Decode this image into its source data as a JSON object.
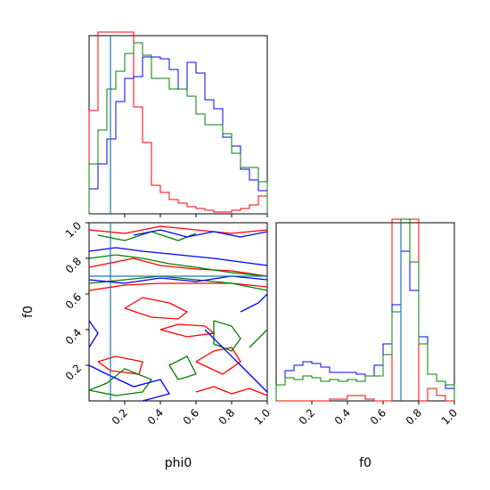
{
  "chart_data": {
    "type": "corner",
    "variables": [
      "phi0",
      "f0"
    ],
    "xlabel_phi0": "phi0",
    "xlabel_f0": "f0",
    "ylabel_f0": "f0",
    "xlim": [
      0,
      1
    ],
    "ylim": [
      0,
      1
    ],
    "truth": {
      "phi0": 0.12,
      "f0": 0.7
    },
    "ticks": {
      "phi0_bottom": [
        "0.2",
        "0.4",
        "0.6",
        "0.8",
        "1.0"
      ],
      "f0_left": [
        "0.2",
        "0.4",
        "0.6",
        "0.8",
        "1.0"
      ],
      "f0_bottom": [
        "0.2",
        "0.4",
        "0.6",
        "0.8",
        "1.0"
      ]
    },
    "colors": {
      "red": "#ff0000",
      "green": "#008000",
      "blue": "#0000ff",
      "truth": "#1f77b4"
    },
    "histograms": {
      "phi0": {
        "bin_width": 0.05,
        "ymax": 1.0,
        "red": [
          0.58,
          1.2,
          1.2,
          1.2,
          1.2,
          0.6,
          0.4,
          0.16,
          0.12,
          0.08,
          0.06,
          0.04,
          0.03,
          0.02,
          0.01,
          0.01,
          0.02,
          0.03,
          0.05,
          0.1
        ],
        "green": [
          0.28,
          0.47,
          0.7,
          0.8,
          0.9,
          0.96,
          0.89,
          0.76,
          0.76,
          0.7,
          0.7,
          0.66,
          0.56,
          0.5,
          0.5,
          0.45,
          0.34,
          0.26,
          0.26,
          0.18
        ],
        "blue": [
          0.14,
          0.28,
          0.42,
          0.63,
          0.76,
          0.77,
          0.88,
          0.88,
          0.87,
          0.81,
          0.7,
          0.85,
          0.79,
          0.64,
          0.59,
          0.43,
          0.38,
          0.25,
          0.19,
          0.13
        ]
      },
      "f0": {
        "bin_width": 0.05,
        "ymax": 1.0,
        "red": [
          0.0,
          0.0,
          0.0,
          0.0,
          0.0,
          0.0,
          0.01,
          0.01,
          0.03,
          0.03,
          0.01,
          0.0,
          0.0,
          1.2,
          1.2,
          1.2,
          0.0,
          0.07,
          0.03,
          0.0
        ],
        "green": [
          0.09,
          0.13,
          0.12,
          0.14,
          0.13,
          0.11,
          0.12,
          0.11,
          0.12,
          0.11,
          0.14,
          0.14,
          0.26,
          0.5,
          1.06,
          0.78,
          0.32,
          0.15,
          0.11,
          0.09
        ],
        "blue": [
          0.09,
          0.17,
          0.2,
          0.22,
          0.21,
          0.19,
          0.16,
          0.16,
          0.16,
          0.15,
          0.14,
          0.2,
          0.32,
          0.54,
          0.84,
          0.62,
          0.36,
          0.15,
          0.11,
          0.07
        ]
      }
    },
    "contours_2d": {
      "red": [
        [
          [
            0.0,
            0.75
          ],
          [
            0.1,
            0.77
          ],
          [
            0.25,
            0.8
          ],
          [
            0.4,
            0.76
          ],
          [
            0.6,
            0.74
          ],
          [
            0.8,
            0.73
          ],
          [
            1.0,
            0.7
          ]
        ],
        [
          [
            0.0,
            0.62
          ],
          [
            0.2,
            0.65
          ],
          [
            0.4,
            0.66
          ],
          [
            0.6,
            0.66
          ],
          [
            0.8,
            0.66
          ],
          [
            1.0,
            0.64
          ]
        ],
        [
          [
            0.2,
            0.52
          ],
          [
            0.3,
            0.58
          ],
          [
            0.45,
            0.55
          ],
          [
            0.55,
            0.5
          ],
          [
            0.5,
            0.46
          ],
          [
            0.35,
            0.47
          ],
          [
            0.2,
            0.52
          ]
        ],
        [
          [
            0.4,
            0.4
          ],
          [
            0.5,
            0.43
          ],
          [
            0.65,
            0.42
          ],
          [
            0.7,
            0.38
          ],
          [
            0.55,
            0.36
          ],
          [
            0.4,
            0.4
          ]
        ],
        [
          [
            0.6,
            0.22
          ],
          [
            0.7,
            0.28
          ],
          [
            0.8,
            0.3
          ],
          [
            0.85,
            0.22
          ],
          [
            0.75,
            0.15
          ],
          [
            0.6,
            0.22
          ]
        ],
        [
          [
            0.0,
            0.96
          ],
          [
            0.2,
            0.94
          ],
          [
            0.4,
            0.98
          ],
          [
            0.6,
            0.96
          ],
          [
            0.8,
            0.94
          ],
          [
            1.0,
            0.96
          ]
        ],
        [
          [
            0.05,
            0.22
          ],
          [
            0.15,
            0.25
          ],
          [
            0.3,
            0.22
          ],
          [
            0.28,
            0.15
          ],
          [
            0.12,
            0.17
          ],
          [
            0.05,
            0.22
          ]
        ],
        [
          [
            0.6,
            0.05
          ],
          [
            0.7,
            0.08
          ],
          [
            0.8,
            0.04
          ],
          [
            0.9,
            0.07
          ],
          [
            1.0,
            0.03
          ]
        ]
      ],
      "green": [
        [
          [
            0.0,
            0.8
          ],
          [
            0.15,
            0.82
          ],
          [
            0.3,
            0.8
          ],
          [
            0.45,
            0.77
          ],
          [
            0.6,
            0.75
          ],
          [
            0.8,
            0.72
          ],
          [
            1.0,
            0.7
          ]
        ],
        [
          [
            0.0,
            0.66
          ],
          [
            0.2,
            0.68
          ],
          [
            0.4,
            0.7
          ],
          [
            0.6,
            0.68
          ],
          [
            0.8,
            0.66
          ],
          [
            1.0,
            0.62
          ]
        ],
        [
          [
            0.05,
            0.93
          ],
          [
            0.2,
            0.9
          ],
          [
            0.35,
            0.95
          ],
          [
            0.5,
            0.9
          ],
          [
            0.6,
            0.94
          ]
        ],
        [
          [
            0.7,
            0.45
          ],
          [
            0.8,
            0.42
          ],
          [
            0.85,
            0.35
          ],
          [
            0.8,
            0.28
          ],
          [
            0.7,
            0.32
          ],
          [
            0.7,
            0.45
          ]
        ],
        [
          [
            0.0,
            0.06
          ],
          [
            0.1,
            0.1
          ],
          [
            0.2,
            0.18
          ],
          [
            0.35,
            0.12
          ],
          [
            0.3,
            0.05
          ],
          [
            0.15,
            0.03
          ],
          [
            0.0,
            0.06
          ]
        ],
        [
          [
            0.45,
            0.2
          ],
          [
            0.55,
            0.25
          ],
          [
            0.6,
            0.15
          ],
          [
            0.5,
            0.12
          ],
          [
            0.45,
            0.2
          ]
        ],
        [
          [
            0.9,
            0.3
          ],
          [
            1.0,
            0.4
          ]
        ]
      ],
      "blue": [
        [
          [
            0.0,
            0.84
          ],
          [
            0.15,
            0.86
          ],
          [
            0.3,
            0.84
          ],
          [
            0.5,
            0.82
          ],
          [
            0.7,
            0.8
          ],
          [
            0.85,
            0.78
          ],
          [
            1.0,
            0.76
          ]
        ],
        [
          [
            0.0,
            0.68
          ],
          [
            0.2,
            0.66
          ],
          [
            0.4,
            0.69
          ],
          [
            0.6,
            0.67
          ],
          [
            0.8,
            0.7
          ],
          [
            1.0,
            0.68
          ]
        ],
        [
          [
            0.0,
            0.45
          ],
          [
            0.05,
            0.38
          ],
          [
            0.0,
            0.3
          ]
        ],
        [
          [
            0.0,
            0.2
          ],
          [
            0.1,
            0.15
          ],
          [
            0.25,
            0.08
          ],
          [
            0.4,
            0.12
          ],
          [
            0.45,
            0.04
          ],
          [
            0.3,
            0.0
          ]
        ],
        [
          [
            0.65,
            0.4
          ],
          [
            0.75,
            0.3
          ],
          [
            0.85,
            0.2
          ],
          [
            0.95,
            0.1
          ],
          [
            1.0,
            0.05
          ]
        ],
        [
          [
            0.85,
            0.5
          ],
          [
            0.95,
            0.55
          ],
          [
            1.0,
            0.6
          ]
        ],
        [
          [
            0.25,
            0.93
          ],
          [
            0.4,
            0.96
          ],
          [
            0.55,
            0.92
          ],
          [
            0.7,
            0.95
          ],
          [
            0.85,
            0.92
          ],
          [
            1.0,
            0.95
          ]
        ]
      ]
    }
  }
}
